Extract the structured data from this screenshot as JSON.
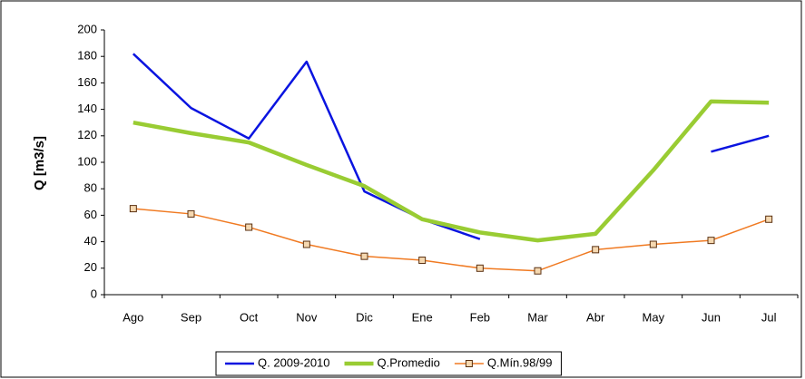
{
  "chart_data": {
    "type": "line",
    "y_label": "Q [m3/s]",
    "categories": [
      "Ago",
      "Sep",
      "Oct",
      "Nov",
      "Dic",
      "Ene",
      "Feb",
      "Mar",
      "Abr",
      "May",
      "Jun",
      "Jul"
    ],
    "series": [
      {
        "name": "Q. 2009-2010",
        "color": "#0a14e0",
        "width": 2.5,
        "values": [
          182,
          141,
          118,
          176,
          78,
          57,
          42,
          null,
          null,
          null,
          108,
          120
        ]
      },
      {
        "name": "Q.Promedio",
        "color": "#99cc33",
        "width": 4.5,
        "values": [
          130,
          122,
          115,
          98,
          82,
          57,
          47,
          41,
          46,
          94,
          146,
          145
        ]
      },
      {
        "name": "Q.Mín.98/99",
        "color": "#f07a22",
        "width": 1.5,
        "marker": "square",
        "values": [
          65,
          61,
          51,
          38,
          29,
          26,
          20,
          18,
          34,
          38,
          41,
          57
        ]
      }
    ],
    "ylim": [
      0,
      200
    ],
    "yticks": [
      0,
      20,
      40,
      60,
      80,
      100,
      120,
      140,
      160,
      180,
      200
    ],
    "legend": "bottom"
  }
}
